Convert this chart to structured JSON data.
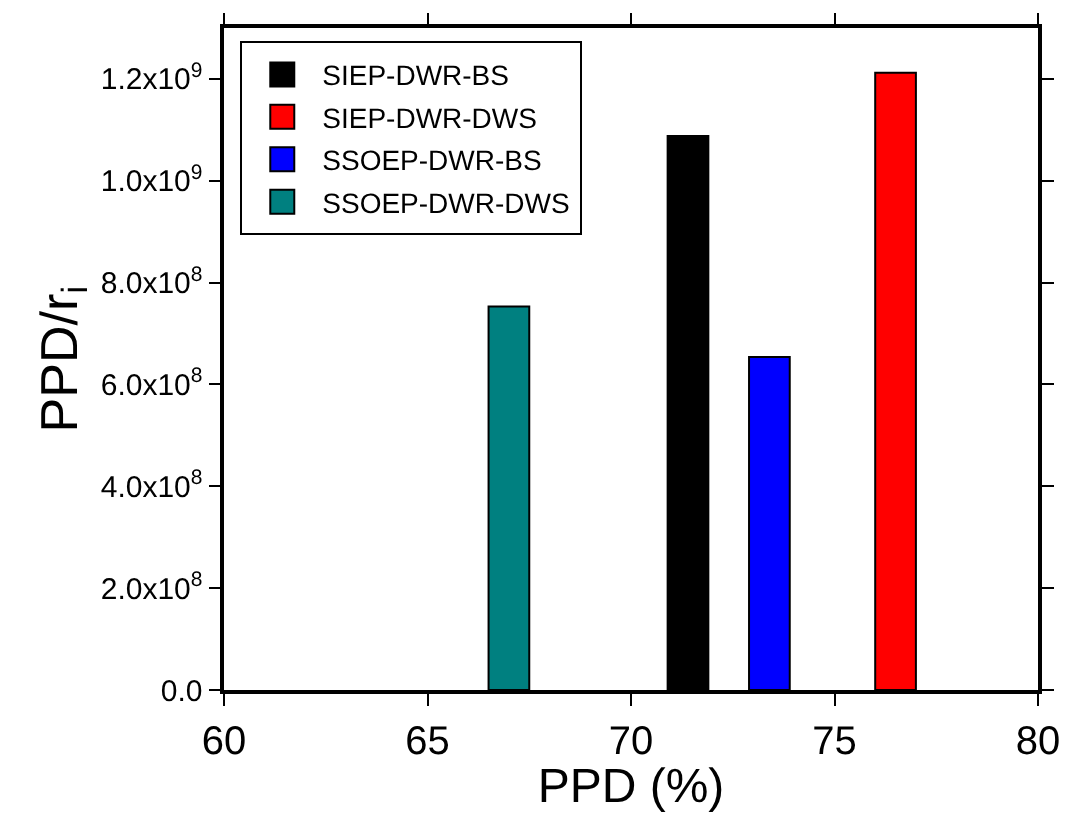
{
  "chart_data": {
    "type": "bar",
    "xlabel": "PPD (%)",
    "ylabel": "PPD/r$_{i}$",
    "series": [
      {
        "name": "SIEP-DWR-BS",
        "color": "#000000",
        "x": [
          71.4
        ],
        "values": [
          1088000000.0
        ]
      },
      {
        "name": "SIEP-DWR-DWS",
        "color": "#ff0000",
        "x": [
          76.5
        ],
        "values": [
          1212000000.0
        ]
      },
      {
        "name": "SSOEP-DWR-BS",
        "color": "#0000ff",
        "x": [
          73.4
        ],
        "values": [
          654000000.0
        ]
      },
      {
        "name": "SSOEP-DWR-DWS",
        "color": "#008080",
        "x": [
          67
        ],
        "values": [
          753000000.0
        ]
      }
    ],
    "xlim": [
      60,
      80
    ],
    "xticks": [
      60,
      65,
      70,
      75,
      80
    ],
    "ylim": [
      0,
      1300000000.0
    ],
    "yticks": [
      {
        "value": 0,
        "label": "0.0"
      },
      {
        "value": 200000000.0,
        "label": "2.0x10$^{8}$"
      },
      {
        "value": 400000000.0,
        "label": "4.0x10$^{8}$"
      },
      {
        "value": 600000000.0,
        "label": "6.0x10$^{8}$"
      },
      {
        "value": 800000000.0,
        "label": "8.0x10$^{8}$"
      },
      {
        "value": 1000000000.0,
        "label": "1.0x10$^{9}$"
      },
      {
        "value": 1200000000.0,
        "label": "1.2x10$^{9}$"
      }
    ],
    "grid": false,
    "legend": "top left"
  }
}
